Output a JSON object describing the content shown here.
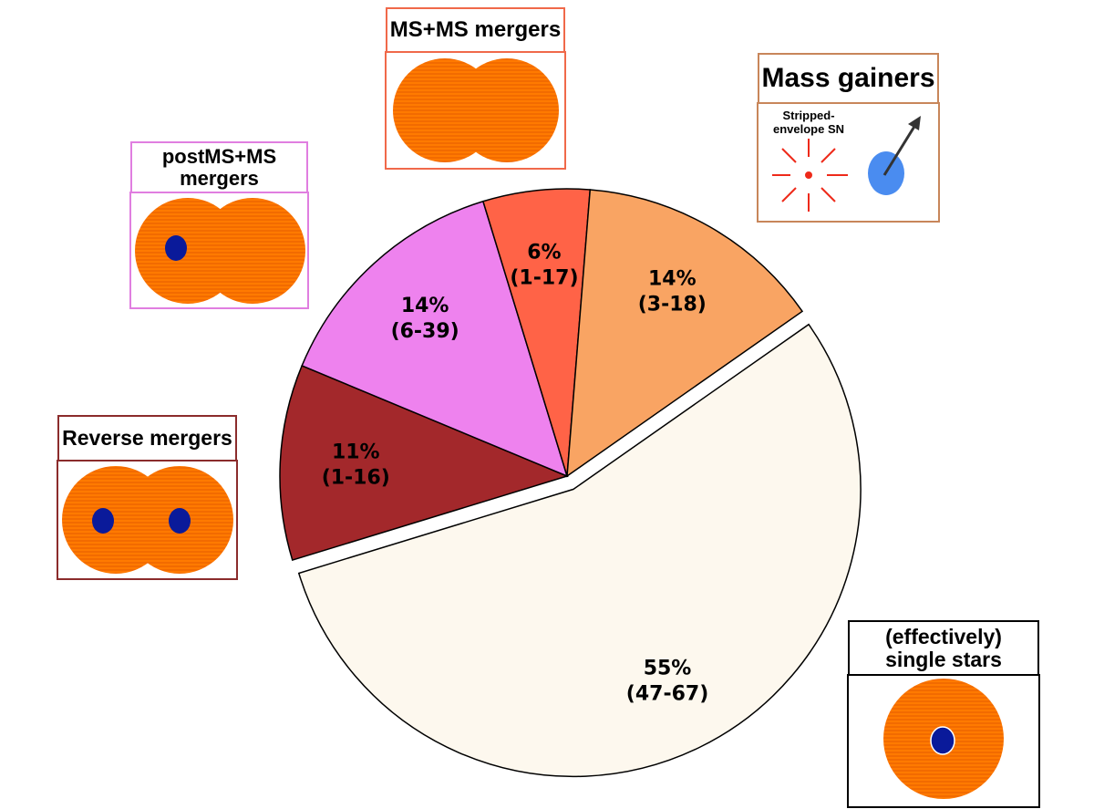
{
  "chart_data": {
    "type": "pie",
    "categories": [
      "(effectively) single stars",
      "Reverse mergers",
      "postMS+MS mergers",
      "MS+MS mergers",
      "Mass gainers"
    ],
    "values": [
      55,
      11,
      14,
      6,
      14
    ],
    "value_labels": [
      "55%",
      "11%",
      "14%",
      "6%",
      "14%"
    ],
    "ranges": [
      "(47-67)",
      "(1-16)",
      "(6-39)",
      "(1-17)",
      "(3-18)"
    ],
    "colors": [
      "#fdf8ee",
      "#a3282b",
      "#ee82ee",
      "#ff6347",
      "#f9a463"
    ],
    "annotation": "Stripped-envelope SN"
  }
}
